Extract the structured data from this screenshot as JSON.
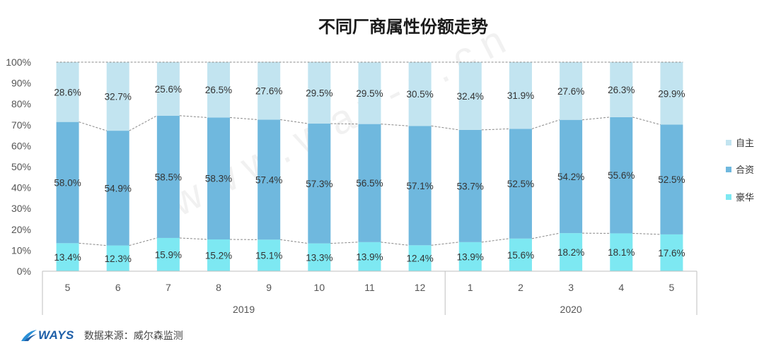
{
  "watermark": "www.way-s.cn",
  "footer": {
    "logo_text": "WAYS",
    "source": "数据来源：威尔森监测"
  },
  "colors": {
    "zizhu": "#c2e4f0",
    "hezi": "#6fb8de",
    "haohua": "#7de8f2",
    "dashed": "#888888",
    "axis": "#bfbfbf"
  },
  "chart_data": {
    "type": "bar",
    "stacked": true,
    "title": "不同厂商属性份额走势",
    "categories": [
      "5",
      "6",
      "7",
      "8",
      "9",
      "10",
      "11",
      "12",
      "1",
      "2",
      "3",
      "4",
      "5"
    ],
    "groups": [
      {
        "label": "2019",
        "count": 8
      },
      {
        "label": "2020",
        "count": 5
      }
    ],
    "yticks": [
      "0%",
      "10%",
      "20%",
      "30%",
      "40%",
      "50%",
      "60%",
      "70%",
      "80%",
      "90%",
      "100%"
    ],
    "ylim": [
      0,
      100
    ],
    "legend_position": "right",
    "series": [
      {
        "name": "豪华",
        "color_key": "haohua",
        "values": [
          13.4,
          12.3,
          15.9,
          15.2,
          15.1,
          13.3,
          13.9,
          12.4,
          13.9,
          15.6,
          18.2,
          18.1,
          17.6
        ],
        "labels": [
          "13.4%",
          "12.3%",
          "15.9%",
          "15.2%",
          "15.1%",
          "13.3%",
          "13.9%",
          "12.4%",
          "13.9%",
          "15.6%",
          "18.2%",
          "18.1%",
          "17.6%"
        ]
      },
      {
        "name": "合资",
        "color_key": "hezi",
        "values": [
          58.0,
          54.9,
          58.5,
          58.3,
          57.4,
          57.3,
          56.5,
          57.1,
          53.7,
          52.5,
          54.2,
          55.6,
          52.5
        ],
        "labels": [
          "58.0%",
          "54.9%",
          "58.5%",
          "58.3%",
          "57.4%",
          "57.3%",
          "56.5%",
          "57.1%",
          "53.7%",
          "52.5%",
          "54.2%",
          "55.6%",
          "52.5%"
        ]
      },
      {
        "name": "自主",
        "color_key": "zizhu",
        "values": [
          28.6,
          32.7,
          25.6,
          26.5,
          27.6,
          29.5,
          29.5,
          30.5,
          32.4,
          31.9,
          27.6,
          26.3,
          29.9
        ],
        "labels": [
          "28.6%",
          "32.7%",
          "25.6%",
          "26.5%",
          "27.6%",
          "29.5%",
          "29.5%",
          "30.5%",
          "32.4%",
          "31.9%",
          "27.6%",
          "26.3%",
          "29.9%"
        ]
      }
    ],
    "legend_order": [
      "自主",
      "合资",
      "豪华"
    ]
  }
}
